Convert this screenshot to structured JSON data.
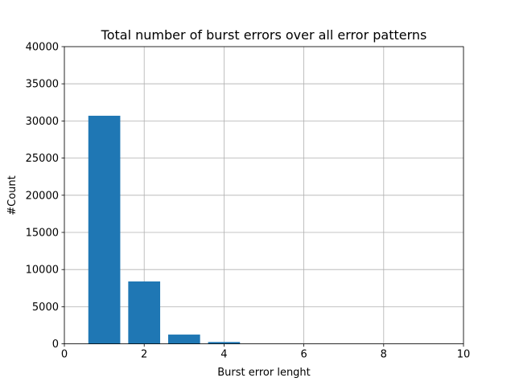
{
  "chart_data": {
    "type": "bar",
    "title": "Total number of burst errors over all error patterns",
    "xlabel": "Burst error lenght",
    "ylabel": "#Count",
    "x": [
      1,
      2,
      3,
      4
    ],
    "values": [
      30700,
      8400,
      1250,
      250
    ],
    "bar_width": 0.8,
    "xlim": [
      0,
      10
    ],
    "ylim": [
      0,
      40000
    ],
    "xticks": [
      0,
      2,
      4,
      6,
      8,
      10
    ],
    "yticks": [
      0,
      5000,
      10000,
      15000,
      20000,
      25000,
      30000,
      35000,
      40000
    ],
    "grid": true,
    "bar_color": "#1f77b4"
  }
}
